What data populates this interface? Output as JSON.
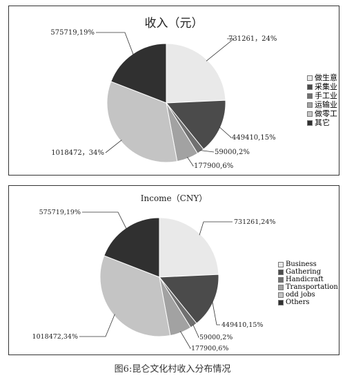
{
  "caption": "图6:昆仑文化村收入分布情况",
  "colors": [
    "#e9e9e9",
    "#4b4b4b",
    "#707070",
    "#a2a2a2",
    "#c4c4c4",
    "#303030"
  ],
  "chart_data": [
    {
      "type": "pie",
      "title": "收入（元）",
      "slices": [
        {
          "name": "做生意",
          "value": 731261,
          "label": "731261，24%"
        },
        {
          "name": "采集业",
          "value": 449410,
          "label": "449410,15%"
        },
        {
          "name": "手工业",
          "value": 59000,
          "label": "59000,2%"
        },
        {
          "name": "运输业",
          "value": 177900,
          "label": "177900,6%"
        },
        {
          "name": "做零工",
          "value": 1018472,
          "label": "1018472，34%"
        },
        {
          "name": "其它",
          "value": 575719,
          "label": "575719,19%"
        }
      ],
      "legend_position": "right"
    },
    {
      "type": "pie",
      "title": "Income（CNY）",
      "slices": [
        {
          "name": "Business",
          "value": 731261,
          "label": "731261,24%"
        },
        {
          "name": "Gathering",
          "value": 449410,
          "label": "449410,15%"
        },
        {
          "name": "Handicraft",
          "value": 59000,
          "label": "59000,2%"
        },
        {
          "name": "Transportation",
          "value": 177900,
          "label": "177900,6%"
        },
        {
          "name": "odd jobs",
          "value": 1018472,
          "label": "1018472,34%"
        },
        {
          "name": "Others",
          "value": 575719,
          "label": "575719,19%"
        }
      ],
      "legend_position": "right"
    }
  ]
}
